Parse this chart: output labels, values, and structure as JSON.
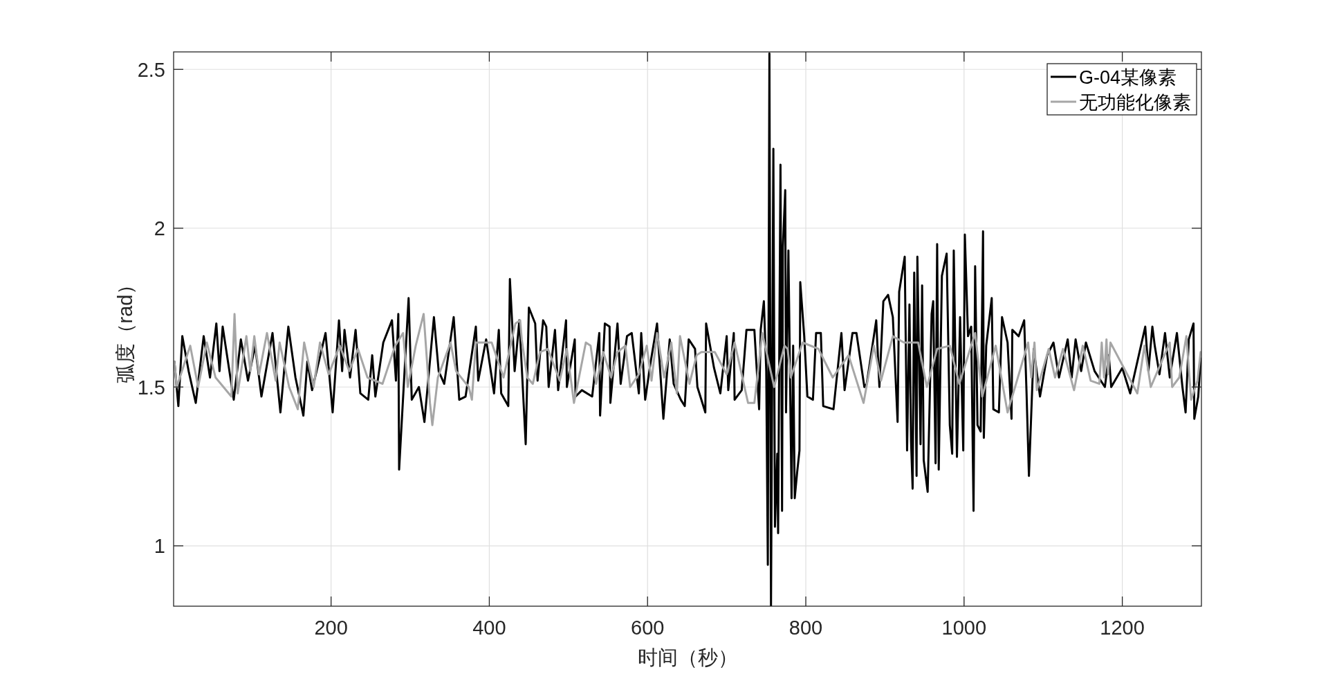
{
  "chart_data": {
    "type": "line",
    "xlabel": "时间（秒）",
    "ylabel": "弧度（rad）",
    "xlim": [
      1,
      1300
    ],
    "ylim": [
      0.81,
      2.555
    ],
    "xticks": [
      200,
      400,
      600,
      800,
      1000,
      1200
    ],
    "yticks": [
      1,
      1.5,
      2,
      2.5
    ],
    "grid": true,
    "legend": "top right",
    "line_style": "solid",
    "series": [
      {
        "name": "G-04某像素",
        "color": "#000000",
        "x": [
          2,
          7,
          12,
          20,
          29,
          39,
          47,
          55,
          59,
          63,
          77,
          86,
          95,
          104,
          112,
          126,
          136,
          141,
          146,
          155,
          165,
          170,
          176,
          193,
          202,
          210,
          214,
          217,
          224,
          231,
          237,
          247,
          252,
          256,
          266,
          277,
          282,
          285,
          286,
          298,
          302,
          311,
          318,
          330,
          336,
          343,
          355,
          362,
          370,
          383,
          386,
          396,
          406,
          412,
          415,
          424,
          426,
          432,
          438,
          446,
          450,
          458,
          461,
          468,
          472,
          475,
          483,
          487,
          497,
          498,
          508,
          509,
          517,
          530,
          539,
          540,
          546,
          552,
          553,
          562,
          566,
          574,
          580,
          589,
          592,
          597,
          604,
          612,
          620,
          628,
          633,
          642,
          647,
          652,
          660,
          663,
          673,
          674,
          684,
          692,
          700,
          702,
          709,
          710,
          719,
          725,
          735,
          741,
          743,
          747,
          750,
          752,
          754,
          756,
          759,
          761,
          764,
          765,
          768,
          770,
          771,
          774,
          775,
          778,
          782,
          784,
          786,
          789,
          792,
          793,
          798,
          802,
          809,
          813,
          819,
          822,
          835,
          845,
          849,
          859,
          864,
          874,
          877,
          889,
          893,
          898,
          904,
          910,
          916,
          918,
          925,
          928,
          931,
          933,
          935,
          937,
          940,
          941,
          945,
          947,
          949,
          954,
          959,
          961,
          964,
          966,
          968,
          972,
          978,
          982,
          985,
          987,
          991,
          995,
          999,
          1001,
          1005,
          1009,
          1012,
          1014,
          1017,
          1021,
          1024,
          1025,
          1028,
          1035,
          1037,
          1044,
          1048,
          1055,
          1060,
          1061,
          1069,
          1076,
          1079,
          1082,
          1088,
          1096,
          1105,
          1113,
          1120,
          1131,
          1136,
          1141,
          1148,
          1154,
          1165,
          1178,
          1183,
          1186,
          1200,
          1210,
          1229,
          1233,
          1238,
          1241,
          1247,
          1254,
          1260,
          1269,
          1276,
          1280,
          1284,
          1290,
          1291,
          1296,
          1299
        ],
        "values": [
          1.58,
          1.44,
          1.66,
          1.55,
          1.45,
          1.66,
          1.53,
          1.7,
          1.55,
          1.69,
          1.46,
          1.65,
          1.52,
          1.63,
          1.47,
          1.67,
          1.42,
          1.56,
          1.69,
          1.53,
          1.41,
          1.58,
          1.49,
          1.67,
          1.42,
          1.71,
          1.55,
          1.68,
          1.53,
          1.68,
          1.48,
          1.46,
          1.6,
          1.47,
          1.64,
          1.71,
          1.52,
          1.73,
          1.24,
          1.78,
          1.46,
          1.5,
          1.39,
          1.72,
          1.55,
          1.51,
          1.72,
          1.46,
          1.47,
          1.69,
          1.52,
          1.65,
          1.48,
          1.68,
          1.48,
          1.44,
          1.84,
          1.55,
          1.71,
          1.32,
          1.75,
          1.7,
          1.52,
          1.71,
          1.69,
          1.5,
          1.68,
          1.49,
          1.71,
          1.5,
          1.65,
          1.47,
          1.49,
          1.47,
          1.67,
          1.41,
          1.7,
          1.69,
          1.45,
          1.7,
          1.51,
          1.66,
          1.67,
          1.48,
          1.67,
          1.46,
          1.58,
          1.7,
          1.4,
          1.65,
          1.51,
          1.46,
          1.44,
          1.65,
          1.62,
          1.5,
          1.42,
          1.7,
          1.56,
          1.48,
          1.66,
          1.49,
          1.67,
          1.46,
          1.49,
          1.68,
          1.68,
          1.43,
          1.68,
          1.77,
          1.55,
          0.94,
          2.55,
          0.81,
          2.25,
          1.06,
          1.29,
          1.04,
          2.2,
          1.11,
          1.94,
          2.12,
          1.42,
          1.93,
          1.15,
          1.63,
          1.15,
          1.23,
          1.3,
          1.83,
          1.66,
          1.47,
          1.46,
          1.67,
          1.67,
          1.44,
          1.43,
          1.67,
          1.49,
          1.67,
          1.67,
          1.5,
          1.51,
          1.71,
          1.5,
          1.77,
          1.79,
          1.72,
          1.39,
          1.8,
          1.91,
          1.3,
          1.76,
          1.33,
          1.18,
          1.86,
          1.22,
          1.91,
          1.32,
          1.82,
          1.27,
          1.17,
          1.73,
          1.77,
          1.26,
          1.95,
          1.24,
          1.85,
          1.92,
          1.38,
          1.29,
          1.93,
          1.28,
          1.72,
          1.3,
          1.98,
          1.66,
          1.69,
          1.11,
          1.88,
          1.38,
          1.36,
          1.99,
          1.34,
          1.63,
          1.78,
          1.43,
          1.42,
          1.72,
          1.64,
          1.4,
          1.68,
          1.66,
          1.71,
          1.48,
          1.22,
          1.62,
          1.47,
          1.6,
          1.64,
          1.53,
          1.65,
          1.53,
          1.65,
          1.55,
          1.64,
          1.55,
          1.5,
          1.6,
          1.5,
          1.56,
          1.48,
          1.69,
          1.55,
          1.69,
          1.63,
          1.54,
          1.67,
          1.53,
          1.67,
          1.5,
          1.42,
          1.65,
          1.7,
          1.4,
          1.47,
          1.59
        ]
      },
      {
        "name": "无功能化像素",
        "color": "#a6a6a6",
        "x": [
          2,
          5,
          22,
          32,
          43,
          54,
          74,
          78,
          82,
          93,
          98,
          103,
          109,
          119,
          130,
          135,
          147,
          158,
          166,
          178,
          186,
          197,
          211,
          223,
          234,
          246,
          265,
          281,
          291,
          297,
          307,
          317,
          325,
          328,
          335,
          351,
          358,
          374,
          378,
          383,
          403,
          418,
          433,
          439,
          441,
          448,
          455,
          464,
          474,
          489,
          498,
          507,
          522,
          528,
          535,
          544,
          554,
          562,
          572,
          578,
          589,
          599,
          605,
          612,
          621,
          630,
          637,
          641,
          653,
          662,
          668,
          685,
          700,
          710,
          727,
          735,
          745,
          760,
          773,
          777,
          781,
          796,
          816,
          834,
          854,
          873,
          886,
          895,
          910,
          924,
          942,
          953,
          966,
          982,
          994,
          1014,
          1023,
          1040,
          1055,
          1081,
          1085,
          1089,
          1092,
          1107,
          1115,
          1125,
          1139,
          1150,
          1160,
          1171,
          1174,
          1177,
          1180,
          1182,
          1185,
          1219,
          1228,
          1236,
          1260,
          1263,
          1272,
          1281,
          1287,
          1295,
          1299
        ],
        "values": [
          1.58,
          1.5,
          1.63,
          1.5,
          1.64,
          1.53,
          1.47,
          1.73,
          1.48,
          1.66,
          1.55,
          1.66,
          1.54,
          1.67,
          1.52,
          1.64,
          1.5,
          1.43,
          1.64,
          1.5,
          1.64,
          1.54,
          1.63,
          1.55,
          1.62,
          1.53,
          1.51,
          1.63,
          1.67,
          1.5,
          1.63,
          1.73,
          1.45,
          1.38,
          1.53,
          1.64,
          1.55,
          1.5,
          1.46,
          1.64,
          1.64,
          1.53,
          1.7,
          1.71,
          1.65,
          1.53,
          1.51,
          1.61,
          1.62,
          1.52,
          1.62,
          1.45,
          1.64,
          1.63,
          1.51,
          1.61,
          1.53,
          1.61,
          1.63,
          1.5,
          1.54,
          1.63,
          1.52,
          1.67,
          1.53,
          1.64,
          1.48,
          1.66,
          1.51,
          1.6,
          1.61,
          1.61,
          1.54,
          1.64,
          1.45,
          1.45,
          1.67,
          1.5,
          1.63,
          1.62,
          1.53,
          1.64,
          1.62,
          1.53,
          1.6,
          1.45,
          1.63,
          1.52,
          1.66,
          1.64,
          1.64,
          1.5,
          1.62,
          1.63,
          1.51,
          1.67,
          1.47,
          1.63,
          1.42,
          1.64,
          1.53,
          1.64,
          1.49,
          1.62,
          1.53,
          1.62,
          1.49,
          1.63,
          1.52,
          1.51,
          1.64,
          1.53,
          1.65,
          1.54,
          1.64,
          1.48,
          1.63,
          1.5,
          1.64,
          1.5,
          1.53,
          1.66,
          1.46,
          1.52,
          1.61
        ]
      }
    ]
  }
}
